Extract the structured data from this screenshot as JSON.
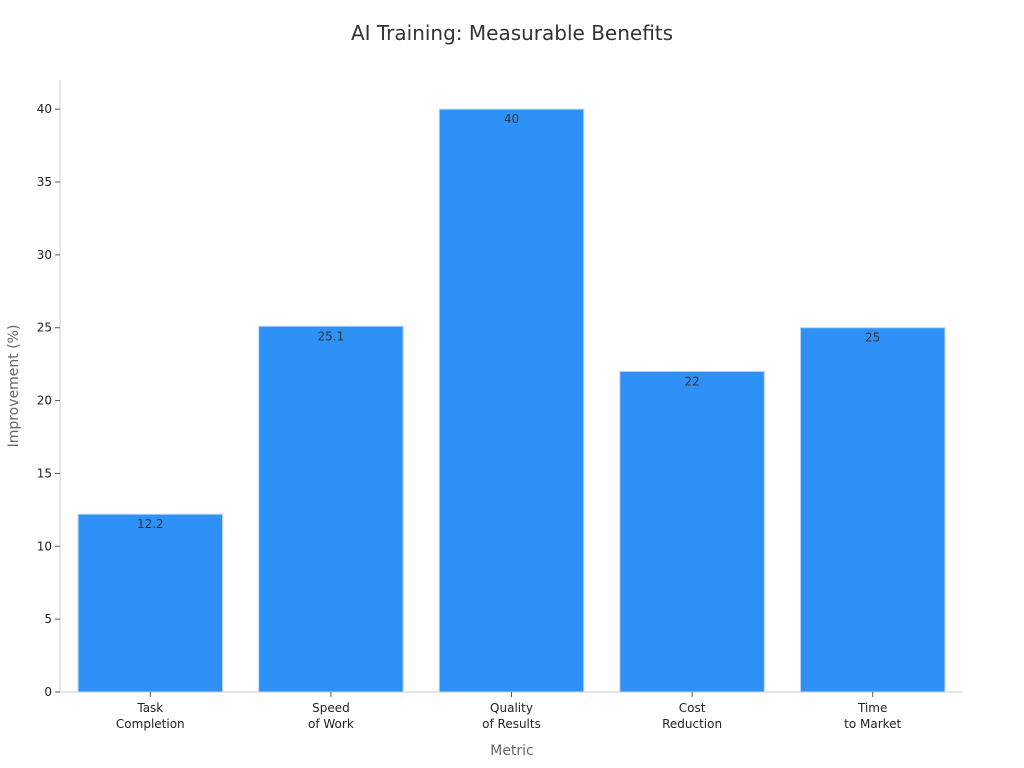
{
  "chart_data": {
    "type": "bar",
    "title": "AI Training: Measurable Benefits",
    "xlabel": "Metric",
    "ylabel": "Improvement (%)",
    "categories": [
      [
        "Task",
        "Completion"
      ],
      [
        "Speed",
        "of Work"
      ],
      [
        "Quality",
        "of Results"
      ],
      [
        "Cost",
        "Reduction"
      ],
      [
        "Time",
        "to Market"
      ]
    ],
    "values": [
      12.2,
      25.1,
      40,
      22,
      25
    ],
    "data_labels": [
      "12.2",
      "25.1",
      "40",
      "22",
      "25"
    ],
    "ylim": [
      0,
      42
    ],
    "yticks": [
      0,
      5,
      10,
      15,
      20,
      25,
      30,
      35,
      40
    ],
    "bar_color": "#2e91f8",
    "grid": false,
    "legend": "none"
  }
}
